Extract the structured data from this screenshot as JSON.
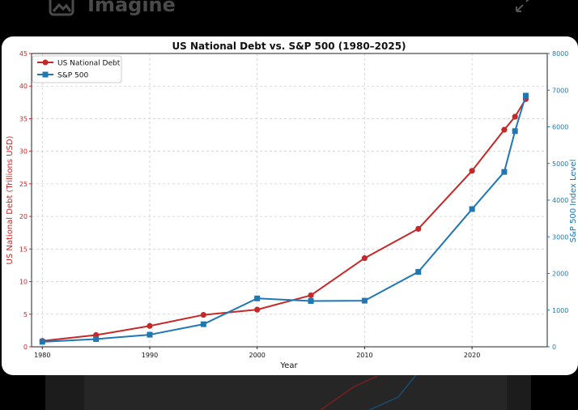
{
  "app": {
    "title": "Imagine"
  },
  "icons": {
    "app": "image-icon",
    "expand": "expand-icon"
  },
  "colors": {
    "debt": "#c62828",
    "sp500": "#1f77b4"
  },
  "chart_data": {
    "type": "line",
    "title": "US National Debt vs. S&P 500 (1980–2025)",
    "xlabel": "Year",
    "ylabel": "US National Debt (Trillions USD)",
    "y2label": "S&P 500 Index Level",
    "xlim": [
      1979,
      2027
    ],
    "ylim": [
      0,
      45
    ],
    "y2lim": [
      0,
      8000
    ],
    "xticks": [
      1980,
      1990,
      2000,
      2010,
      2020
    ],
    "yticks": [
      0,
      5,
      10,
      15,
      20,
      25,
      30,
      35,
      40,
      45
    ],
    "y2ticks": [
      0,
      1000,
      2000,
      3000,
      4000,
      5000,
      6000,
      7000,
      8000
    ],
    "grid": true,
    "legend": "top-left",
    "series": [
      {
        "name": "US National Debt",
        "axis": "left",
        "marker": "circle",
        "color": "#c62828",
        "x": [
          1980,
          1985,
          1990,
          1995,
          2000,
          2005,
          2010,
          2015,
          2020,
          2023,
          2024,
          2025
        ],
        "y": [
          0.9,
          1.8,
          3.2,
          4.9,
          5.7,
          7.9,
          13.6,
          18.1,
          27.0,
          33.3,
          35.3,
          38.0
        ]
      },
      {
        "name": "S&P 500",
        "axis": "right",
        "marker": "square",
        "color": "#1f77b4",
        "x": [
          1980,
          1985,
          1990,
          1995,
          2000,
          2005,
          2010,
          2015,
          2020,
          2023,
          2024,
          2025
        ],
        "y": [
          136,
          211,
          330,
          616,
          1320,
          1248,
          1258,
          2044,
          3756,
          4770,
          5882,
          6850
        ]
      }
    ]
  }
}
